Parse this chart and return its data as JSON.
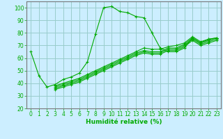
{
  "xlabel": "Humidité relative (%)",
  "bg_color": "#cceeff",
  "grid_color": "#99cccc",
  "line_color": "#00aa00",
  "xlim": [
    -0.5,
    23.5
  ],
  "ylim": [
    20,
    105
  ],
  "yticks": [
    20,
    30,
    40,
    50,
    60,
    70,
    80,
    90,
    100
  ],
  "xticks": [
    0,
    1,
    2,
    3,
    4,
    5,
    6,
    7,
    8,
    9,
    10,
    11,
    12,
    13,
    14,
    15,
    16,
    17,
    18,
    19,
    20,
    21,
    22,
    23
  ],
  "lines": [
    {
      "x": [
        0,
        1,
        2,
        3,
        4,
        5,
        6,
        7,
        8,
        9,
        10,
        11,
        12,
        13,
        14,
        15,
        16,
        17,
        18,
        19,
        20,
        21,
        22,
        23
      ],
      "y": [
        65,
        46,
        37,
        39,
        43,
        45,
        48,
        57,
        79,
        100,
        101,
        97,
        96,
        93,
        92,
        80,
        68,
        65,
        65,
        68,
        76,
        72,
        75,
        76
      ]
    },
    {
      "x": [
        3,
        4,
        5,
        6,
        7,
        8,
        9,
        10,
        11,
        12,
        13,
        14,
        15,
        16,
        17,
        18,
        19,
        20,
        21,
        22,
        23
      ],
      "y": [
        38,
        40,
        42,
        44,
        47,
        50,
        53,
        56,
        59,
        62,
        65,
        68,
        67,
        67,
        69,
        70,
        72,
        77,
        73,
        75,
        76
      ]
    },
    {
      "x": [
        3,
        4,
        5,
        6,
        7,
        8,
        9,
        10,
        11,
        12,
        13,
        14,
        15,
        16,
        17,
        18,
        19,
        20,
        21,
        22,
        23
      ],
      "y": [
        37,
        39,
        41,
        43,
        46,
        49,
        52,
        55,
        58,
        61,
        64,
        66,
        65,
        65,
        68,
        68,
        71,
        76,
        72,
        74,
        76
      ]
    },
    {
      "x": [
        3,
        4,
        5,
        6,
        7,
        8,
        9,
        10,
        11,
        12,
        13,
        14,
        15,
        16,
        17,
        18,
        19,
        20,
        21,
        22,
        23
      ],
      "y": [
        36,
        38,
        40,
        42,
        45,
        48,
        51,
        54,
        57,
        60,
        63,
        65,
        64,
        64,
        67,
        67,
        70,
        75,
        71,
        73,
        75
      ]
    },
    {
      "x": [
        3,
        4,
        5,
        6,
        7,
        8,
        9,
        10,
        11,
        12,
        13,
        14,
        15,
        16,
        17,
        18,
        19,
        20,
        21,
        22,
        23
      ],
      "y": [
        35,
        37,
        39,
        41,
        44,
        47,
        50,
        53,
        56,
        59,
        62,
        64,
        63,
        63,
        66,
        66,
        69,
        74,
        70,
        72,
        74
      ]
    }
  ],
  "xlabel_fontsize": 6.5,
  "tick_fontsize": 5.5
}
